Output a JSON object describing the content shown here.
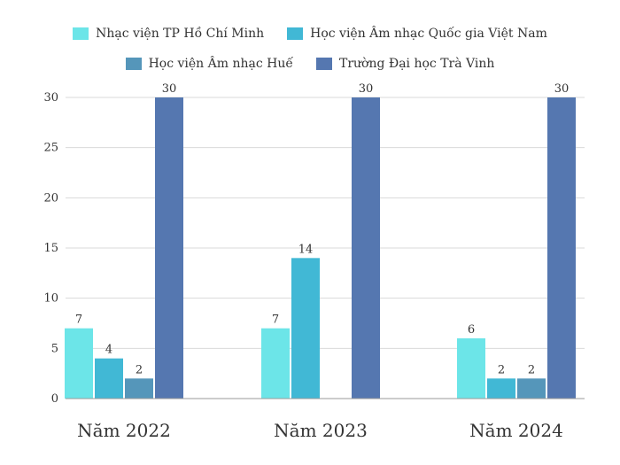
{
  "chart_data": {
    "type": "bar",
    "categories": [
      "Năm 2022",
      "Năm 2023",
      "Năm 2024"
    ],
    "series": [
      {
        "name": "Nhạc viện TP Hồ Chí Minh",
        "color": "#6ce5e8",
        "values": [
          7,
          7,
          6
        ]
      },
      {
        "name": "Học viện Âm nhạc Quốc gia Việt Nam",
        "color": "#41b8d5",
        "values": [
          4,
          14,
          2
        ]
      },
      {
        "name": "Học viện Âm nhạc Huế",
        "color": "#5596ba",
        "values": [
          2,
          null,
          2
        ]
      },
      {
        "name": "Trường Đại học Trà Vinh",
        "color": "#5577b0",
        "values": [
          30,
          30,
          30
        ]
      }
    ],
    "ylim": [
      0,
      30
    ],
    "yticks": [
      0,
      5,
      10,
      15,
      20,
      25,
      30
    ],
    "grid": true,
    "legend": "top",
    "data_labels": true
  }
}
